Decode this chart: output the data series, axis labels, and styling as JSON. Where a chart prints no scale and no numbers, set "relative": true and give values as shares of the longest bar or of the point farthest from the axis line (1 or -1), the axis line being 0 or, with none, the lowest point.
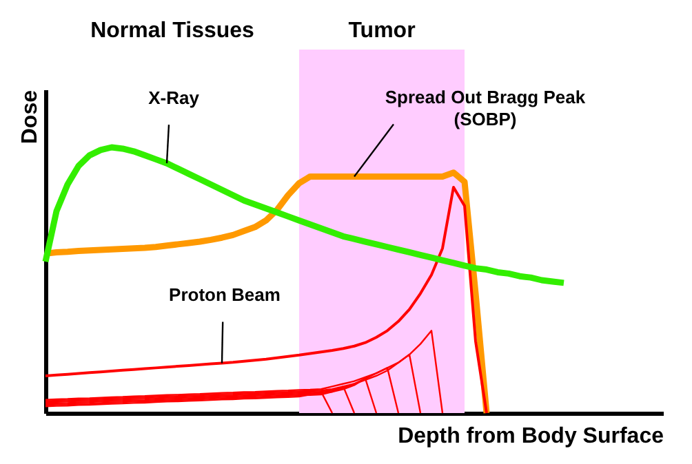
{
  "chart_data": {
    "type": "line",
    "relative": true,
    "xlabel": "Depth from Body Surface",
    "ylabel": "Dose",
    "categories": [
      null,
      null,
      null,
      null,
      null,
      null,
      null,
      null,
      null,
      null,
      null,
      null,
      null,
      null,
      null,
      null,
      null,
      null,
      null,
      null,
      null,
      null,
      null,
      null,
      null,
      null,
      null,
      null,
      null,
      null,
      null,
      null,
      null,
      null,
      null,
      null,
      null,
      null,
      null,
      null,
      null,
      null,
      null,
      null,
      null,
      null,
      null,
      null,
      null,
      null,
      null,
      null,
      null,
      null,
      null,
      null,
      null
    ],
    "series": [
      {
        "color": "#33ee00",
        "values": [
          0.57,
          0.76,
          0.86,
          0.93,
          0.97,
          0.99,
          1.0,
          0.995,
          0.985,
          0.97,
          0.955,
          0.94,
          0.92,
          0.9,
          0.88,
          0.86,
          0.84,
          0.82,
          0.8,
          0.785,
          0.77,
          0.755,
          0.74,
          0.725,
          0.71,
          0.695,
          0.68,
          0.665,
          0.655,
          0.645,
          0.635,
          0.625,
          0.615,
          0.605,
          0.595,
          0.585,
          0.575,
          0.565,
          0.555,
          0.545,
          0.54,
          0.53,
          0.525,
          0.515,
          0.51,
          0.5,
          0.495,
          0.49,
          null,
          null,
          null,
          null,
          null,
          null,
          null,
          null,
          null
        ]
      },
      {
        "color": "#ff9900",
        "values": [
          0.6,
          0.605,
          0.607,
          0.61,
          0.612,
          0.614,
          0.616,
          0.618,
          0.62,
          0.622,
          0.625,
          0.63,
          0.635,
          0.64,
          0.645,
          0.652,
          0.66,
          0.67,
          0.685,
          0.7,
          0.725,
          0.765,
          0.82,
          0.865,
          0.89,
          0.89,
          0.89,
          0.89,
          0.89,
          0.89,
          0.89,
          0.89,
          0.89,
          0.89,
          0.89,
          0.89,
          0.89,
          0.905,
          0.87,
          0.45,
          0,
          null,
          null,
          null,
          null,
          null,
          null,
          null,
          null,
          null,
          null,
          null,
          null,
          null,
          null,
          null,
          null
        ]
      },
      {
        "color": "#ff0000",
        "values": [
          0.14,
          0.143,
          0.146,
          0.149,
          0.152,
          0.155,
          0.158,
          0.161,
          0.164,
          0.167,
          0.17,
          0.173,
          0.176,
          0.179,
          0.182,
          0.185,
          0.188,
          0.191,
          0.195,
          0.199,
          0.203,
          0.208,
          0.213,
          0.218,
          0.224,
          0.23,
          0.236,
          0.243,
          0.252,
          0.265,
          0.285,
          0.31,
          0.345,
          0.39,
          0.45,
          0.52,
          0.62,
          0.85,
          0.78,
          0.27,
          0,
          null,
          null,
          null,
          null,
          null,
          null,
          null,
          null,
          null,
          null,
          null,
          null,
          null,
          null,
          null,
          null
        ]
      },
      {
        "color": "#ff0000",
        "values": [
          0.05,
          0.052,
          0.053,
          0.055,
          0.056,
          0.058,
          0.06,
          0.061,
          0.063,
          0.064,
          0.066,
          0.068,
          0.069,
          0.071,
          0.072,
          0.074,
          0.076,
          0.077,
          0.079,
          0.08,
          0.082,
          0.084,
          0.085,
          0.087,
          0.088,
          0.09,
          0.1,
          0.11,
          0.12,
          0.135,
          0.15,
          0.17,
          0.19,
          0.22,
          0.26,
          0.31,
          0,
          null,
          null,
          null,
          null,
          null,
          null,
          null,
          null,
          null,
          null,
          null,
          null,
          null,
          null,
          null,
          null,
          null,
          null,
          null,
          null
        ]
      },
      {
        "color": "#ff0000",
        "values": [
          0.045,
          0.047,
          0.048,
          0.05,
          0.051,
          0.053,
          0.055,
          0.056,
          0.058,
          0.059,
          0.061,
          0.063,
          0.064,
          0.066,
          0.067,
          0.069,
          0.071,
          0.072,
          0.074,
          0.075,
          0.077,
          0.079,
          0.08,
          0.082,
          0.083,
          0.085,
          0.09,
          0.1,
          0.11,
          0.125,
          0.14,
          0.16,
          0.19,
          0.22,
          0,
          null,
          null,
          null,
          null,
          null,
          null,
          null,
          null,
          null,
          null,
          null,
          null,
          null,
          null,
          null,
          null,
          null,
          null,
          null,
          null,
          null,
          null
        ]
      },
      {
        "color": "#ff0000",
        "values": [
          0.04,
          0.042,
          0.043,
          0.045,
          0.046,
          0.048,
          0.05,
          0.051,
          0.053,
          0.054,
          0.056,
          0.058,
          0.059,
          0.061,
          0.062,
          0.064,
          0.066,
          0.067,
          0.069,
          0.07,
          0.072,
          0.074,
          0.075,
          0.077,
          0.078,
          0.08,
          0.085,
          0.095,
          0.11,
          0.13,
          0.15,
          0.17,
          0,
          null,
          null,
          null,
          null,
          null,
          null,
          null,
          null,
          null,
          null,
          null,
          null,
          null,
          null,
          null,
          null,
          null,
          null,
          null,
          null,
          null,
          null,
          null,
          null
        ]
      },
      {
        "color": "#ff0000",
        "values": [
          0.035,
          0.037,
          0.038,
          0.04,
          0.041,
          0.043,
          0.045,
          0.046,
          0.048,
          0.049,
          0.051,
          0.053,
          0.054,
          0.056,
          0.057,
          0.059,
          0.061,
          0.062,
          0.064,
          0.065,
          0.067,
          0.069,
          0.07,
          0.072,
          0.073,
          0.075,
          0.08,
          0.09,
          0.105,
          0.13,
          0,
          null,
          null,
          null,
          null,
          null,
          null,
          null,
          null,
          null,
          null,
          null,
          null,
          null,
          null,
          null,
          null,
          null,
          null,
          null,
          null,
          null,
          null,
          null,
          null,
          null,
          null
        ]
      },
      {
        "color": "#ff0000",
        "values": [
          0.03,
          0.032,
          0.033,
          0.035,
          0.036,
          0.038,
          0.04,
          0.041,
          0.043,
          0.044,
          0.046,
          0.048,
          0.049,
          0.051,
          0.052,
          0.054,
          0.056,
          0.057,
          0.059,
          0.06,
          0.062,
          0.064,
          0.065,
          0.067,
          0.068,
          0.07,
          0.08,
          0.1,
          0,
          null,
          null,
          null,
          null,
          null,
          null,
          null,
          null,
          null,
          null,
          null,
          null,
          null,
          null,
          null,
          null,
          null,
          null,
          null,
          null,
          null,
          null,
          null,
          null,
          null,
          null,
          null,
          null
        ]
      },
      {
        "color": "#ff0000",
        "values": [
          0.025,
          0.027,
          0.028,
          0.03,
          0.031,
          0.033,
          0.035,
          0.036,
          0.038,
          0.039,
          0.041,
          0.043,
          0.044,
          0.046,
          0.047,
          0.049,
          0.051,
          0.052,
          0.054,
          0.055,
          0.057,
          0.059,
          0.06,
          0.062,
          0.07,
          0.08,
          0,
          null,
          null,
          null,
          null,
          null,
          null,
          null,
          null,
          null,
          null,
          null,
          null,
          null,
          null,
          null,
          null,
          null,
          null,
          null,
          null,
          null,
          null,
          null,
          null,
          null,
          null,
          null,
          null,
          null,
          null
        ]
      }
    ],
    "annotations": [
      "Normal Tissues",
      "X-Ray",
      "Spread Out Bragg Peak\n(SOBP)",
      "Proton Beam",
      "Tumor"
    ]
  }
}
